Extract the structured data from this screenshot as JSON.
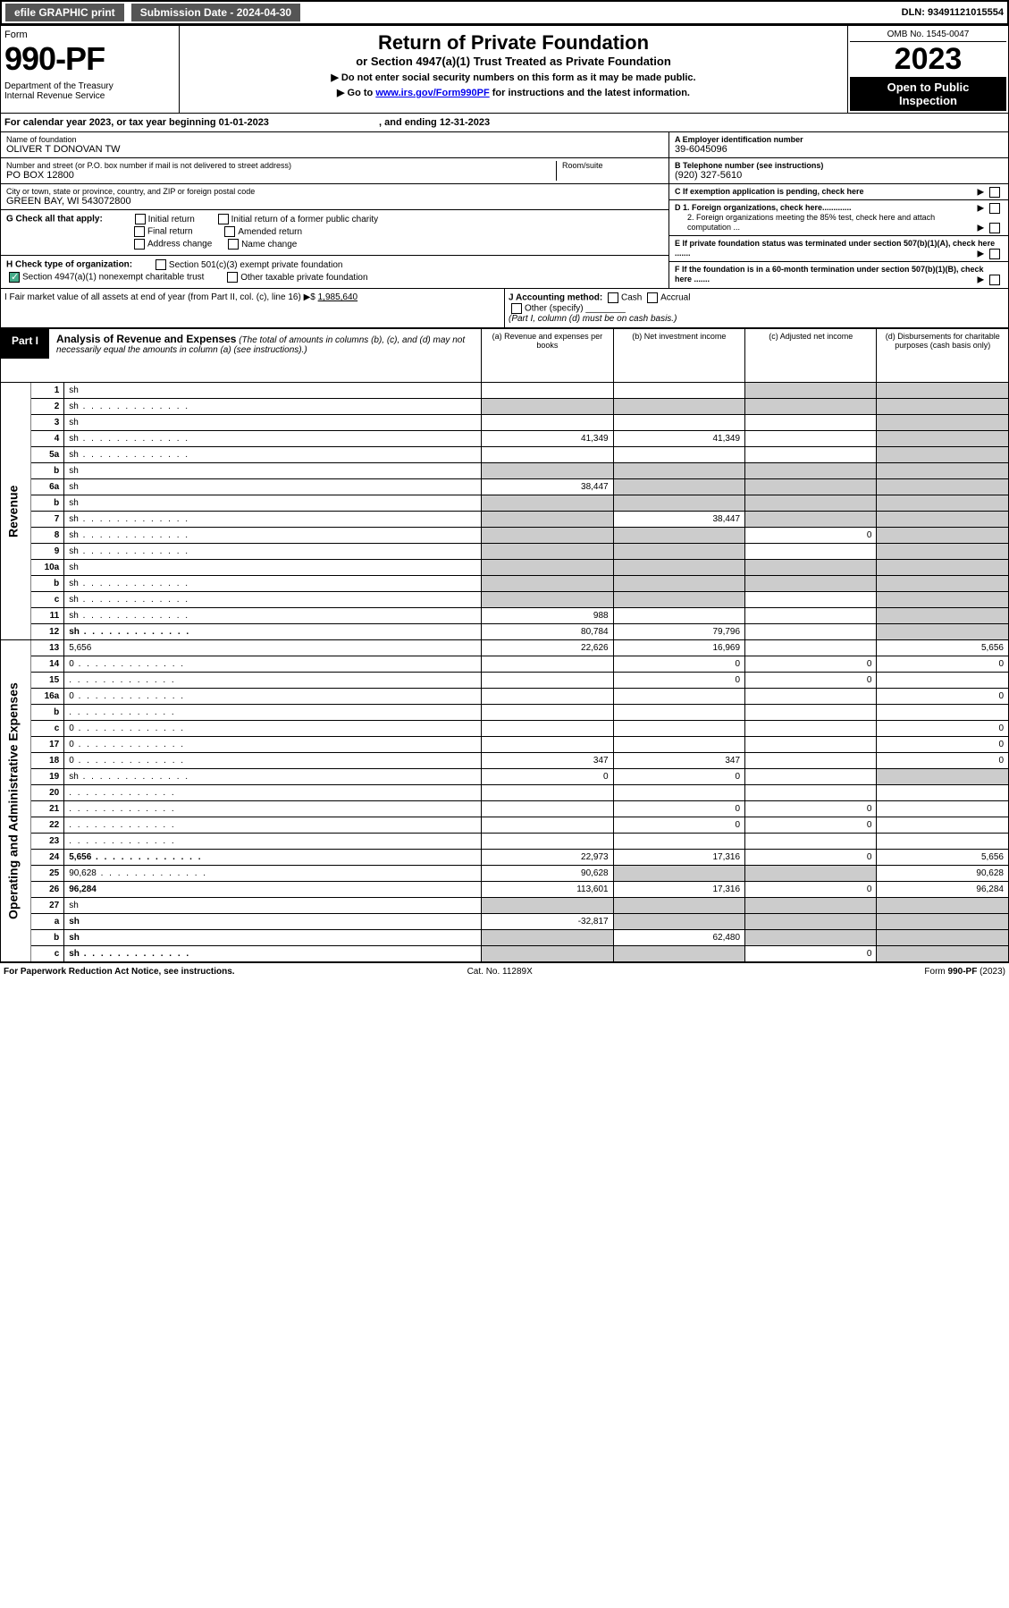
{
  "topbar": {
    "efile": "efile GRAPHIC print",
    "sub_label": "Submission Date - ",
    "sub_date": "2024-04-30",
    "dln_label": "DLN: ",
    "dln": "93491121015554"
  },
  "header": {
    "form_word": "Form",
    "form_num": "990-PF",
    "dept": "Department of the Treasury\nInternal Revenue Service",
    "title": "Return of Private Foundation",
    "subtitle": "or Section 4947(a)(1) Trust Treated as Private Foundation",
    "note1": "▶ Do not enter social security numbers on this form as it may be made public.",
    "note2_pre": "▶ Go to ",
    "note2_link": "www.irs.gov/Form990PF",
    "note2_post": " for instructions and the latest information.",
    "omb": "OMB No. 1545-0047",
    "year": "2023",
    "open": "Open to Public\nInspection"
  },
  "calyear": {
    "pre": "For calendar year 2023, or tax year beginning ",
    "begin": "01-01-2023",
    "mid": " , and ending ",
    "end": "12-31-2023"
  },
  "info": {
    "name_lbl": "Name of foundation",
    "name": "OLIVER T DONOVAN TW",
    "addr_lbl": "Number and street (or P.O. box number if mail is not delivered to street address)",
    "addr": "PO BOX 12800",
    "room_lbl": "Room/suite",
    "city_lbl": "City or town, state or province, country, and ZIP or foreign postal code",
    "city": "GREEN BAY, WI  543072800",
    "ein_lbl": "A Employer identification number",
    "ein": "39-6045096",
    "phone_lbl": "B Telephone number (see instructions)",
    "phone": "(920) 327-5610",
    "c_lbl": "C If exemption application is pending, check here",
    "d1_lbl": "D 1. Foreign organizations, check here.............",
    "d2_lbl": "2. Foreign organizations meeting the 85% test, check here and attach computation ...",
    "e_lbl": "E  If private foundation status was terminated under section 507(b)(1)(A), check here .......",
    "f_lbl": "F  If the foundation is in a 60-month termination under section 507(b)(1)(B), check here .......",
    "g_lbl": "G Check all that apply:",
    "g_opts": [
      "Initial return",
      "Initial return of a former public charity",
      "Final return",
      "Amended return",
      "Address change",
      "Name change"
    ],
    "h_lbl": "H Check type of organization:",
    "h_opts": [
      "Section 501(c)(3) exempt private foundation",
      "Section 4947(a)(1) nonexempt charitable trust",
      "Other taxable private foundation"
    ],
    "i_lbl": "I Fair market value of all assets at end of year (from Part II, col. (c), line 16) ▶$ ",
    "i_val": "1,985,640",
    "j_lbl": "J Accounting method:",
    "j_opts": [
      "Cash",
      "Accrual",
      "Other (specify)"
    ],
    "j_note": "(Part I, column (d) must be on cash basis.)"
  },
  "part1": {
    "tag": "Part I",
    "title": "Analysis of Revenue and Expenses",
    "title_note": " (The total of amounts in columns (b), (c), and (d) may not necessarily equal the amounts in column (a) (see instructions).)",
    "cols": [
      "(a) Revenue and expenses per books",
      "(b) Net investment income",
      "(c) Adjusted net income",
      "(d) Disbursements for charitable purposes (cash basis only)"
    ],
    "side_rev": "Revenue",
    "side_exp": "Operating and Administrative Expenses",
    "rows": [
      {
        "n": "1",
        "d": "sh",
        "a": "",
        "b": "",
        "c": "sh"
      },
      {
        "n": "2",
        "d": "sh",
        "a": "sh",
        "b": "sh",
        "c": "sh",
        "dots": true
      },
      {
        "n": "3",
        "d": "sh",
        "a": "",
        "b": "",
        "c": ""
      },
      {
        "n": "4",
        "d": "sh",
        "a": "41,349",
        "b": "41,349",
        "c": "",
        "dots": true
      },
      {
        "n": "5a",
        "d": "sh",
        "a": "",
        "b": "",
        "c": "",
        "dots": true
      },
      {
        "n": "b",
        "d": "sh",
        "a": "sh",
        "b": "sh",
        "c": "sh"
      },
      {
        "n": "6a",
        "d": "sh",
        "a": "38,447",
        "b": "sh",
        "c": "sh"
      },
      {
        "n": "b",
        "d": "sh",
        "a": "sh",
        "b": "sh",
        "c": "sh"
      },
      {
        "n": "7",
        "d": "sh",
        "a": "sh",
        "b": "38,447",
        "c": "sh",
        "dots": true
      },
      {
        "n": "8",
        "d": "sh",
        "a": "sh",
        "b": "sh",
        "c": "0",
        "dots": true
      },
      {
        "n": "9",
        "d": "sh",
        "a": "sh",
        "b": "sh",
        "c": "",
        "dots": true
      },
      {
        "n": "10a",
        "d": "sh",
        "a": "sh",
        "b": "sh",
        "c": "sh"
      },
      {
        "n": "b",
        "d": "sh",
        "a": "sh",
        "b": "sh",
        "c": "sh",
        "dots": true
      },
      {
        "n": "c",
        "d": "sh",
        "a": "sh",
        "b": "sh",
        "c": "",
        "dots": true
      },
      {
        "n": "11",
        "d": "sh",
        "a": "988",
        "b": "",
        "c": "",
        "dots": true
      },
      {
        "n": "12",
        "d": "sh",
        "a": "80,784",
        "b": "79,796",
        "c": "",
        "bold": true,
        "dots": true
      },
      {
        "n": "13",
        "d": "5,656",
        "a": "22,626",
        "b": "16,969",
        "c": ""
      },
      {
        "n": "14",
        "d": "0",
        "a": "",
        "b": "0",
        "c": "0",
        "dots": true
      },
      {
        "n": "15",
        "d": "",
        "a": "",
        "b": "0",
        "c": "0",
        "dots": true
      },
      {
        "n": "16a",
        "d": "0",
        "a": "",
        "b": "",
        "c": "",
        "dots": true
      },
      {
        "n": "b",
        "d": "",
        "a": "",
        "b": "",
        "c": "",
        "dots": true
      },
      {
        "n": "c",
        "d": "0",
        "a": "",
        "b": "",
        "c": "",
        "dots": true
      },
      {
        "n": "17",
        "d": "0",
        "a": "",
        "b": "",
        "c": "",
        "dots": true
      },
      {
        "n": "18",
        "d": "0",
        "a": "347",
        "b": "347",
        "c": "",
        "dots": true
      },
      {
        "n": "19",
        "d": "sh",
        "a": "0",
        "b": "0",
        "c": "",
        "dots": true
      },
      {
        "n": "20",
        "d": "",
        "a": "",
        "b": "",
        "c": "",
        "dots": true
      },
      {
        "n": "21",
        "d": "",
        "a": "",
        "b": "0",
        "c": "0",
        "dots": true
      },
      {
        "n": "22",
        "d": "",
        "a": "",
        "b": "0",
        "c": "0",
        "dots": true
      },
      {
        "n": "23",
        "d": "",
        "a": "",
        "b": "",
        "c": "",
        "dots": true
      },
      {
        "n": "24",
        "d": "5,656",
        "a": "22,973",
        "b": "17,316",
        "c": "0",
        "bold": true,
        "dots": true
      },
      {
        "n": "25",
        "d": "90,628",
        "a": "90,628",
        "b": "sh",
        "c": "sh",
        "dots": true
      },
      {
        "n": "26",
        "d": "96,284",
        "a": "113,601",
        "b": "17,316",
        "c": "0",
        "bold": true
      },
      {
        "n": "27",
        "d": "sh",
        "a": "sh",
        "b": "sh",
        "c": "sh"
      },
      {
        "n": "a",
        "d": "sh",
        "a": "-32,817",
        "b": "sh",
        "c": "sh",
        "bold": true
      },
      {
        "n": "b",
        "d": "sh",
        "a": "sh",
        "b": "62,480",
        "c": "sh",
        "bold": true
      },
      {
        "n": "c",
        "d": "sh",
        "a": "sh",
        "b": "sh",
        "c": "0",
        "bold": true,
        "dots": true
      }
    ]
  },
  "footer": {
    "left": "For Paperwork Reduction Act Notice, see instructions.",
    "mid": "Cat. No. 11289X",
    "right": "Form 990-PF (2023)"
  },
  "colors": {
    "shade": "#cccccc",
    "topbtn": "#555555",
    "link": "#0000ee"
  }
}
